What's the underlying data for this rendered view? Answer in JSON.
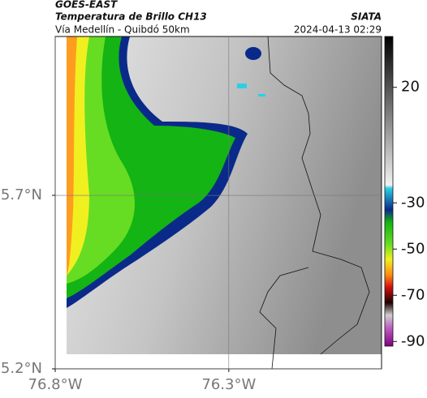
{
  "header": {
    "satellite": "GOES-EAST",
    "product": "Temperatura de Brillo CH13",
    "brand": "SIATA",
    "route": "Vía Medellín - Quibdó 50km",
    "timestamp": "2024-04-13 02:29"
  },
  "map": {
    "xlim": [
      -76.8,
      -75.86
    ],
    "ylim": [
      5.2,
      6.158
    ],
    "xticks": [
      {
        "value": -76.8,
        "label": "76.8°W"
      },
      {
        "value": -76.3,
        "label": "76.3°W"
      }
    ],
    "yticks": [
      {
        "value": 5.2,
        "label": "5.2°N"
      },
      {
        "value": 5.7,
        "label": "5.7°N"
      }
    ],
    "grid": true
  },
  "colorbar": {
    "lim": [
      -92,
      42
    ],
    "ticks": [
      20,
      -30,
      -50,
      -70,
      -90
    ]
  }
}
